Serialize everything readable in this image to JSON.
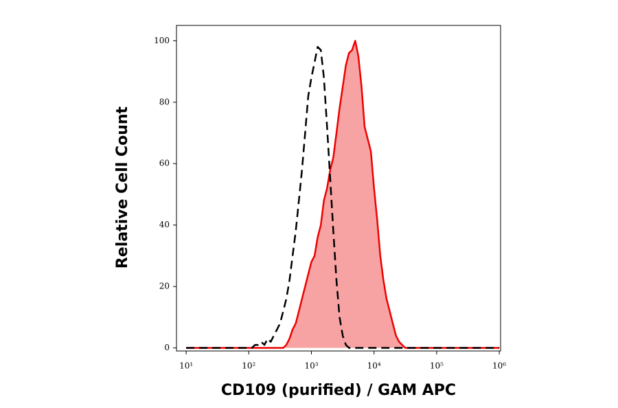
{
  "chart_data": {
    "type": "histogram-overlay",
    "xlabel": "CD109 (purified) / GAM APC",
    "ylabel": "Relative Cell Count",
    "xscale": "log",
    "xlim": [
      7,
      1050000
    ],
    "ylim": [
      -1,
      105
    ],
    "xticks": [
      {
        "value": 10,
        "label": "10¹"
      },
      {
        "value": 100,
        "label": "10²"
      },
      {
        "value": 1000,
        "label": "10³"
      },
      {
        "value": 10000,
        "label": "10⁴"
      },
      {
        "value": 100000,
        "label": "10⁵"
      },
      {
        "value": 1000000,
        "label": "10⁶"
      }
    ],
    "yticks": [
      0,
      20,
      40,
      60,
      80,
      100
    ],
    "x": [
      10,
      100,
      112,
      126,
      141,
      158,
      178,
      200,
      224,
      251,
      282,
      316,
      355,
      398,
      447,
      501,
      562,
      631,
      708,
      794,
      891,
      1000,
      1122,
      1259,
      1413,
      1585,
      1778,
      1995,
      2239,
      2512,
      2818,
      3162,
      3548,
      3981,
      4467,
      5012,
      5623,
      6310,
      7079,
      7943,
      8913,
      10000,
      11220,
      12589,
      14125,
      15849,
      17783,
      19953,
      22387,
      25119,
      28184,
      31623,
      35481,
      39811,
      1000000
    ],
    "series": [
      {
        "style": "dashed",
        "color": "#000000",
        "values": [
          0,
          0,
          0,
          1,
          1,
          2,
          1,
          3,
          2,
          4,
          6,
          8,
          12,
          16,
          22,
          30,
          38,
          48,
          58,
          70,
          82,
          88,
          93,
          98,
          97,
          88,
          72,
          55,
          38,
          22,
          10,
          4,
          1,
          0,
          0,
          0,
          0,
          0,
          0,
          0,
          0,
          0,
          0,
          0,
          0,
          0,
          0,
          0,
          0,
          0,
          0,
          0,
          0,
          0,
          0
        ]
      },
      {
        "style": "filled",
        "color": "#ee0000",
        "fill": "#f7a3a3",
        "values": [
          0,
          0,
          0,
          0,
          0,
          0,
          0,
          0,
          0,
          0,
          0,
          0,
          0,
          1,
          3,
          6,
          8,
          12,
          16,
          20,
          24,
          28,
          30,
          36,
          40,
          48,
          52,
          58,
          62,
          70,
          78,
          85,
          92,
          96,
          97,
          100,
          95,
          85,
          72,
          68,
          64,
          52,
          42,
          30,
          22,
          16,
          12,
          8,
          4,
          2,
          1,
          0,
          0,
          0,
          0
        ]
      }
    ]
  }
}
